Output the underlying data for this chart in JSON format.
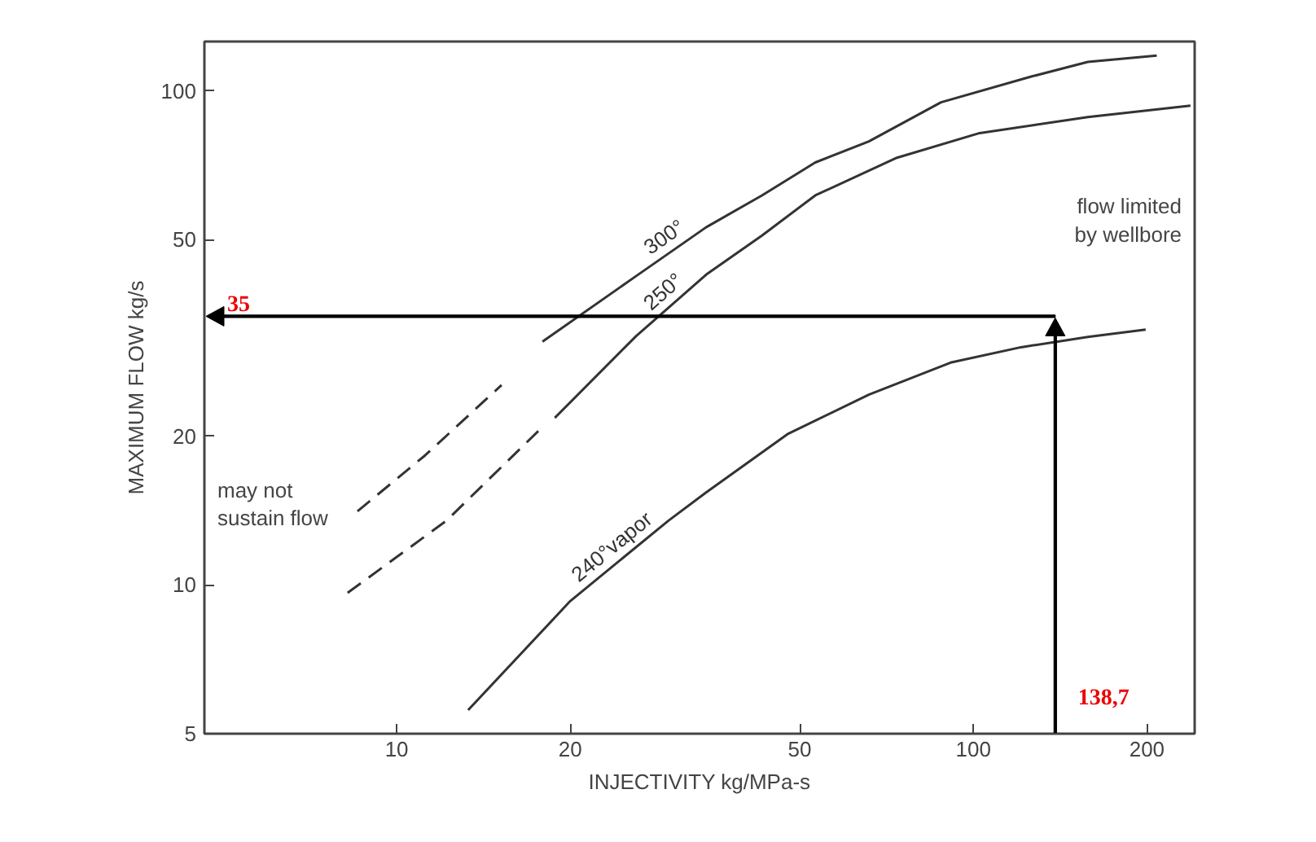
{
  "chart_data": {
    "type": "line",
    "xlabel": "INJECTIVITY kg/MPa-s",
    "ylabel": "MAXIMUM FLOW kg/s",
    "log": "xy",
    "grid": false,
    "marker": "none",
    "line_style": "solid",
    "xlim": [
      4.64,
      242
    ],
    "ylim": [
      5,
      126
    ],
    "xticks": [
      10,
      20,
      50,
      100,
      200
    ],
    "yticks": [
      5,
      10,
      20,
      50,
      100
    ],
    "series": [
      {
        "color": "#333333",
        "line_style": "dashed",
        "x": [
          8.55,
          11.2,
          15.2
        ],
        "values": [
          14.1,
          18.3,
          25.4
        ]
      },
      {
        "name": "300°",
        "color": "#333333",
        "x": [
          17.9,
          26.0,
          34.4,
          43.0,
          53.2,
          65.9,
          87.9,
          126,
          158,
          208
        ],
        "values": [
          31.1,
          42.2,
          53.0,
          61.5,
          71.7,
          79.1,
          94.9,
          107,
          114.6,
          118
        ]
      },
      {
        "color": "#333333",
        "line_style": "dashed",
        "x": [
          8.22,
          12.2,
          17.6
        ],
        "values": [
          9.64,
          13.5,
          20.5
        ]
      },
      {
        "name": "250°",
        "color": "#333333",
        "x": [
          18.8,
          26.0,
          34.4,
          43.0,
          53.2,
          73.7,
          102,
          158,
          238
        ],
        "values": [
          21.8,
          31.9,
          42.5,
          51.0,
          61.5,
          73.3,
          82.1,
          88.6,
          93.4
        ]
      },
      {
        "name": "240°vapor",
        "color": "#333333",
        "x": [
          13.3,
          20.0,
          29.6,
          34.4,
          47.6,
          65.9,
          91.3,
          121,
          158,
          199
        ],
        "values": [
          5.58,
          9.28,
          13.5,
          15.4,
          20.2,
          24.3,
          28.2,
          30.3,
          31.8,
          32.9
        ]
      }
    ],
    "ref_lines": [
      {
        "axis": "y",
        "value": 35,
        "label": "35",
        "color": "#000000"
      },
      {
        "axis": "x",
        "value": 138.7,
        "label": "138,7",
        "color": "#000000"
      }
    ],
    "annotations": [
      "may not sustain flow",
      "flow limited by wellbore"
    ]
  }
}
